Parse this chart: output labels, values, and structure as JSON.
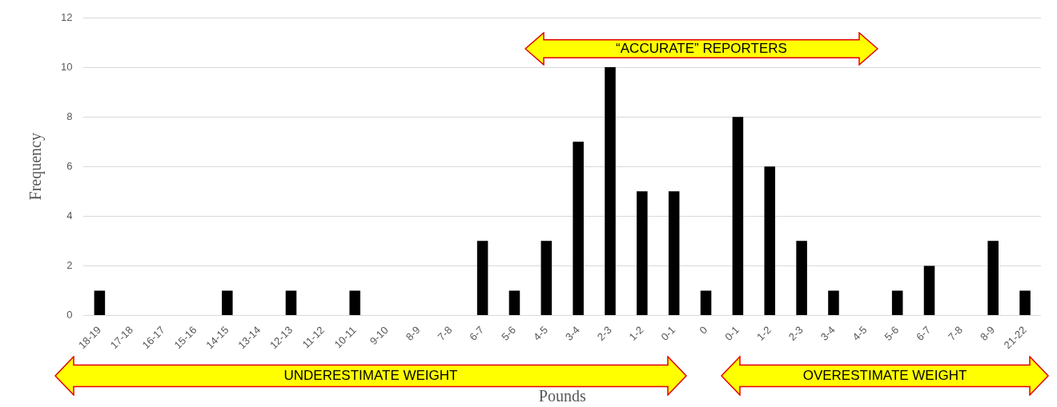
{
  "chart_data": {
    "type": "bar",
    "xlabel": "Pounds",
    "ylabel": "Frequency",
    "categories": [
      "18-19",
      "17-18",
      "16-17",
      "15-16",
      "14-15",
      "13-14",
      "12-13",
      "11-12",
      "10-11",
      "9-10",
      "8-9",
      "7-8",
      "6-7",
      "5-6",
      "4-5",
      "3-4",
      "2-3",
      "1-2",
      "0-1",
      "0",
      "0-1",
      "1-2",
      "2-3",
      "3-4",
      "4-5",
      "5-6",
      "6-7",
      "7-8",
      "8-9",
      "21-22"
    ],
    "values": [
      1,
      0,
      0,
      0,
      1,
      0,
      1,
      0,
      1,
      0,
      0,
      0,
      3,
      1,
      3,
      7,
      10,
      5,
      5,
      1,
      8,
      6,
      3,
      1,
      0,
      1,
      2,
      0,
      3,
      1
    ],
    "color": "#000000",
    "ylim": [
      0,
      12
    ],
    "yticks": [
      0,
      2,
      4,
      6,
      8,
      10,
      12
    ],
    "grid": "y",
    "legend": false,
    "annotations": [
      "“ACCURATE” REPORTERS",
      "UNDERESTIMATE WEIGHT",
      "OVERESTIMATE WEIGHT"
    ]
  }
}
